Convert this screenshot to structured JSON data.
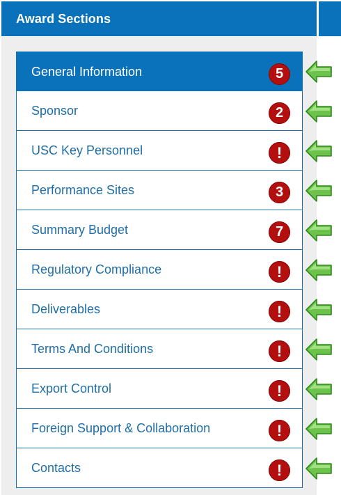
{
  "header": {
    "title": "Award Sections"
  },
  "sections": [
    {
      "label": "General Information",
      "badge": "5",
      "active": true
    },
    {
      "label": "Sponsor",
      "badge": "2"
    },
    {
      "label": "USC Key Personnel",
      "badge": "!"
    },
    {
      "label": "Performance Sites",
      "badge": "3"
    },
    {
      "label": "Summary Budget",
      "badge": "7"
    },
    {
      "label": "Regulatory Compliance",
      "badge": "!"
    },
    {
      "label": "Deliverables",
      "badge": "!"
    },
    {
      "label": "Terms And Conditions",
      "badge": "!"
    },
    {
      "label": "Export Control",
      "badge": "!"
    },
    {
      "label": "Foreign Support & Collaboration",
      "badge": "!"
    },
    {
      "label": "Contacts",
      "badge": "!"
    }
  ],
  "colors": {
    "header": "#0a72bb",
    "active_item": "#0a72bb",
    "link_text": "#1f6ea6",
    "badge": "#b30f0f",
    "arrow_fill": "#6cc24a",
    "arrow_stroke": "#2f8a1b"
  },
  "icons": {
    "badge_alert": "exclamation-icon",
    "pointer": "green-left-arrow-icon"
  }
}
